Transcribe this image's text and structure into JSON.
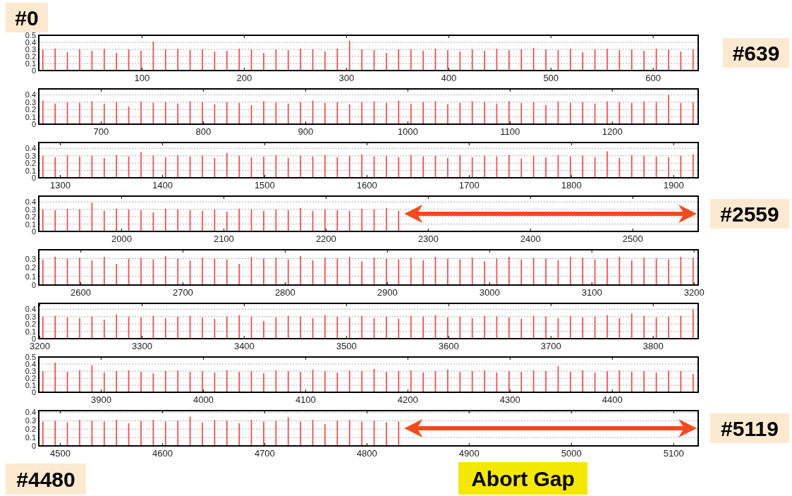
{
  "chart_data": [
    {
      "type": "bar",
      "color": "#ff3b3b",
      "xlim": [
        -1,
        644
      ],
      "xticks": [
        100,
        200,
        300,
        400,
        500,
        600
      ],
      "ylim": [
        0,
        0.5
      ],
      "yticks": [
        0,
        0.1,
        0.2,
        0.3,
        0.4,
        0.5
      ],
      "grid": "y",
      "annotations": [
        "#0",
        "#639"
      ],
      "x": [
        3,
        15,
        27,
        39,
        51,
        63,
        75,
        87,
        99,
        111,
        123,
        135,
        147,
        159,
        171,
        183,
        195,
        207,
        219,
        231,
        243,
        255,
        267,
        279,
        291,
        303,
        315,
        327,
        339,
        351,
        363,
        375,
        387,
        399,
        411,
        423,
        435,
        447,
        459,
        471,
        483,
        495,
        507,
        519,
        531,
        543,
        555,
        567,
        579,
        591,
        603,
        615,
        627,
        639
      ],
      "values": [
        0.3,
        0.31,
        0.26,
        0.3,
        0.28,
        0.31,
        0.25,
        0.3,
        0.28,
        0.41,
        0.3,
        0.31,
        0.29,
        0.3,
        0.27,
        0.28,
        0.31,
        0.3,
        0.25,
        0.3,
        0.29,
        0.31,
        0.3,
        0.27,
        0.31,
        0.42,
        0.3,
        0.29,
        0.25,
        0.3,
        0.3,
        0.28,
        0.31,
        0.29,
        0.27,
        0.3,
        0.28,
        0.31,
        0.29,
        0.3,
        0.32,
        0.3,
        0.29,
        0.31,
        0.26,
        0.3,
        0.31,
        0.29,
        0.3,
        0.28,
        0.31,
        0.3,
        0.27,
        0.3
      ]
    },
    {
      "type": "bar",
      "color": "#ff3b3b",
      "xlim": [
        639,
        1284
      ],
      "xticks": [
        700,
        800,
        900,
        1000,
        1100,
        1200
      ],
      "ylim": [
        0,
        0.48
      ],
      "yticks": [
        0,
        0.1,
        0.2,
        0.3,
        0.4
      ],
      "grid": "y",
      "x": [
        643,
        655,
        667,
        679,
        691,
        703,
        715,
        727,
        739,
        751,
        763,
        775,
        787,
        799,
        811,
        823,
        835,
        847,
        859,
        871,
        883,
        895,
        907,
        919,
        931,
        943,
        955,
        967,
        979,
        991,
        1003,
        1015,
        1027,
        1039,
        1051,
        1063,
        1075,
        1087,
        1099,
        1111,
        1123,
        1135,
        1147,
        1159,
        1171,
        1183,
        1195,
        1207,
        1219,
        1231,
        1243,
        1255,
        1267,
        1279
      ],
      "values": [
        0.32,
        0.28,
        0.3,
        0.29,
        0.31,
        0.28,
        0.3,
        0.24,
        0.31,
        0.29,
        0.3,
        0.28,
        0.31,
        0.3,
        0.27,
        0.3,
        0.29,
        0.26,
        0.31,
        0.3,
        0.28,
        0.3,
        0.32,
        0.29,
        0.3,
        0.27,
        0.3,
        0.31,
        0.29,
        0.32,
        0.28,
        0.3,
        0.31,
        0.27,
        0.29,
        0.31,
        0.3,
        0.28,
        0.31,
        0.29,
        0.3,
        0.26,
        0.31,
        0.29,
        0.3,
        0.28,
        0.31,
        0.3,
        0.29,
        0.31,
        0.3,
        0.4,
        0.29,
        0.3
      ]
    },
    {
      "type": "bar",
      "color": "#ff3b3b",
      "xlim": [
        1279,
        1924
      ],
      "xticks": [
        1300,
        1400,
        1500,
        1600,
        1700,
        1800,
        1900
      ],
      "ylim": [
        0,
        0.48
      ],
      "yticks": [
        0,
        0.1,
        0.2,
        0.3,
        0.4
      ],
      "grid": "y",
      "x": [
        1283,
        1295,
        1307,
        1319,
        1331,
        1343,
        1355,
        1367,
        1379,
        1391,
        1403,
        1415,
        1427,
        1439,
        1451,
        1463,
        1475,
        1487,
        1499,
        1511,
        1523,
        1535,
        1547,
        1559,
        1571,
        1583,
        1595,
        1607,
        1619,
        1631,
        1643,
        1655,
        1667,
        1679,
        1691,
        1703,
        1715,
        1727,
        1739,
        1751,
        1763,
        1775,
        1787,
        1799,
        1811,
        1823,
        1835,
        1847,
        1859,
        1871,
        1883,
        1895,
        1907,
        1919
      ],
      "values": [
        0.3,
        0.28,
        0.31,
        0.29,
        0.3,
        0.27,
        0.31,
        0.29,
        0.35,
        0.3,
        0.28,
        0.31,
        0.29,
        0.3,
        0.27,
        0.34,
        0.3,
        0.28,
        0.29,
        0.31,
        0.27,
        0.3,
        0.29,
        0.31,
        0.28,
        0.3,
        0.32,
        0.29,
        0.3,
        0.28,
        0.31,
        0.29,
        0.3,
        0.27,
        0.31,
        0.28,
        0.3,
        0.29,
        0.31,
        0.26,
        0.3,
        0.28,
        0.31,
        0.29,
        0.3,
        0.28,
        0.36,
        0.27,
        0.31,
        0.3,
        0.29,
        0.28,
        0.3,
        0.32
      ]
    },
    {
      "type": "bar",
      "color": "#ff3b3b",
      "xlim": [
        1919,
        2564
      ],
      "xticks": [
        2000,
        2100,
        2200,
        2300,
        2400,
        2500
      ],
      "ylim": [
        0,
        0.48
      ],
      "yticks": [
        0,
        0.1,
        0.2,
        0.3,
        0.4
      ],
      "grid": "y",
      "annotations": [
        "#2559"
      ],
      "x": [
        1923,
        1935,
        1947,
        1959,
        1971,
        1983,
        1995,
        2007,
        2019,
        2031,
        2043,
        2055,
        2067,
        2079,
        2091,
        2103,
        2115,
        2127,
        2139,
        2151,
        2163,
        2175,
        2187,
        2199,
        2211,
        2223,
        2235,
        2247,
        2259,
        2271
      ],
      "values": [
        0.3,
        0.29,
        0.31,
        0.3,
        0.39,
        0.28,
        0.31,
        0.3,
        0.29,
        0.26,
        0.31,
        0.3,
        0.29,
        0.28,
        0.3,
        0.27,
        0.31,
        0.3,
        0.28,
        0.3,
        0.29,
        0.32,
        0.28,
        0.3,
        0.29,
        0.28,
        0.31,
        0.3,
        0.32,
        0.28
      ]
    },
    {
      "type": "bar",
      "color": "#ff3b3b",
      "xlim": [
        2559,
        3204
      ],
      "xticks": [
        2600,
        2700,
        2800,
        2900,
        3000,
        3100,
        3200
      ],
      "ylim": [
        0,
        0.4
      ],
      "yticks": [
        0,
        0.1,
        0.2,
        0.3
      ],
      "grid": "y",
      "x": [
        2563,
        2575,
        2587,
        2599,
        2611,
        2623,
        2635,
        2647,
        2659,
        2671,
        2683,
        2695,
        2707,
        2719,
        2731,
        2743,
        2755,
        2767,
        2779,
        2791,
        2803,
        2815,
        2827,
        2839,
        2851,
        2863,
        2875,
        2887,
        2899,
        2911,
        2923,
        2935,
        2947,
        2959,
        2971,
        2983,
        2995,
        3007,
        3019,
        3031,
        3043,
        3055,
        3067,
        3079,
        3091,
        3103,
        3115,
        3127,
        3139,
        3151,
        3163,
        3175,
        3187,
        3199
      ],
      "values": [
        0.29,
        0.32,
        0.3,
        0.31,
        0.28,
        0.32,
        0.24,
        0.3,
        0.31,
        0.29,
        0.33,
        0.3,
        0.28,
        0.31,
        0.3,
        0.29,
        0.24,
        0.32,
        0.3,
        0.31,
        0.29,
        0.33,
        0.28,
        0.31,
        0.3,
        0.32,
        0.27,
        0.31,
        0.3,
        0.29,
        0.31,
        0.28,
        0.32,
        0.3,
        0.29,
        0.31,
        0.27,
        0.3,
        0.32,
        0.29,
        0.31,
        0.3,
        0.28,
        0.32,
        0.31,
        0.29,
        0.3,
        0.32,
        0.28,
        0.31,
        0.3,
        0.29,
        0.32,
        0.31
      ]
    },
    {
      "type": "bar",
      "color": "#ff3b3b",
      "xlim": [
        3199,
        3844
      ],
      "xticks": [
        3200,
        3300,
        3400,
        3500,
        3600,
        3700,
        3800
      ],
      "ylim": [
        0,
        0.48
      ],
      "yticks": [
        0,
        0.1,
        0.2,
        0.3,
        0.4
      ],
      "grid": "y",
      "x": [
        3203,
        3215,
        3227,
        3239,
        3251,
        3263,
        3275,
        3287,
        3299,
        3311,
        3323,
        3335,
        3347,
        3359,
        3371,
        3383,
        3395,
        3407,
        3419,
        3431,
        3443,
        3455,
        3467,
        3479,
        3491,
        3503,
        3515,
        3527,
        3539,
        3551,
        3563,
        3575,
        3587,
        3599,
        3611,
        3623,
        3635,
        3647,
        3659,
        3671,
        3683,
        3695,
        3707,
        3719,
        3731,
        3743,
        3755,
        3767,
        3779,
        3791,
        3803,
        3815,
        3827,
        3839
      ],
      "values": [
        0.3,
        0.31,
        0.29,
        0.28,
        0.3,
        0.26,
        0.33,
        0.3,
        0.29,
        0.31,
        0.28,
        0.3,
        0.31,
        0.29,
        0.27,
        0.3,
        0.32,
        0.3,
        0.24,
        0.29,
        0.31,
        0.3,
        0.28,
        0.32,
        0.3,
        0.29,
        0.31,
        0.28,
        0.3,
        0.27,
        0.31,
        0.3,
        0.32,
        0.29,
        0.3,
        0.28,
        0.31,
        0.3,
        0.29,
        0.27,
        0.31,
        0.3,
        0.28,
        0.31,
        0.29,
        0.3,
        0.32,
        0.28,
        0.34,
        0.31,
        0.29,
        0.3,
        0.31,
        0.4
      ]
    },
    {
      "type": "bar",
      "color": "#ff3b3b",
      "xlim": [
        3839,
        4484
      ],
      "xticks": [
        3900,
        4000,
        4100,
        4200,
        4300,
        4400
      ],
      "ylim": [
        0,
        0.5
      ],
      "yticks": [
        0,
        0.1,
        0.2,
        0.3,
        0.4,
        0.5
      ],
      "grid": "y",
      "x": [
        3843,
        3855,
        3867,
        3879,
        3891,
        3903,
        3915,
        3927,
        3939,
        3951,
        3963,
        3975,
        3987,
        3999,
        4011,
        4023,
        4035,
        4047,
        4059,
        4071,
        4083,
        4095,
        4107,
        4119,
        4131,
        4143,
        4155,
        4167,
        4179,
        4191,
        4203,
        4215,
        4227,
        4239,
        4251,
        4263,
        4275,
        4287,
        4299,
        4311,
        4323,
        4335,
        4347,
        4359,
        4371,
        4383,
        4395,
        4407,
        4419,
        4431,
        4443,
        4455,
        4467,
        4479
      ],
      "values": [
        0.3,
        0.42,
        0.29,
        0.31,
        0.38,
        0.28,
        0.3,
        0.31,
        0.29,
        0.27,
        0.3,
        0.31,
        0.29,
        0.3,
        0.28,
        0.31,
        0.29,
        0.3,
        0.27,
        0.31,
        0.3,
        0.29,
        0.32,
        0.3,
        0.28,
        0.31,
        0.3,
        0.33,
        0.29,
        0.3,
        0.31,
        0.28,
        0.3,
        0.32,
        0.29,
        0.3,
        0.31,
        0.28,
        0.3,
        0.29,
        0.31,
        0.3,
        0.37,
        0.29,
        0.31,
        0.28,
        0.3,
        0.31,
        0.29,
        0.3,
        0.28,
        0.31,
        0.3,
        0.26
      ]
    },
    {
      "type": "bar",
      "color": "#ff3b3b",
      "xlim": [
        4479,
        5124
      ],
      "xticks": [
        4500,
        4600,
        4700,
        4800,
        4900,
        5000,
        5100
      ],
      "ylim": [
        0,
        0.42
      ],
      "yticks": [
        0,
        0.1,
        0.2,
        0.3,
        0.4
      ],
      "grid": "y",
      "annotations": [
        "#4480",
        "#5119",
        "Abort Gap"
      ],
      "x": [
        4483,
        4495,
        4507,
        4519,
        4531,
        4543,
        4555,
        4567,
        4579,
        4591,
        4603,
        4615,
        4627,
        4639,
        4651,
        4663,
        4675,
        4687,
        4699,
        4711,
        4723,
        4735,
        4747,
        4759,
        4771,
        4783,
        4795,
        4807,
        4819,
        4831
      ],
      "values": [
        0.29,
        0.3,
        0.28,
        0.31,
        0.3,
        0.29,
        0.31,
        0.27,
        0.3,
        0.31,
        0.29,
        0.3,
        0.35,
        0.28,
        0.31,
        0.3,
        0.27,
        0.31,
        0.29,
        0.3,
        0.34,
        0.29,
        0.31,
        0.26,
        0.3,
        0.31,
        0.29,
        0.3,
        0.28,
        0.29
      ]
    }
  ]
}
